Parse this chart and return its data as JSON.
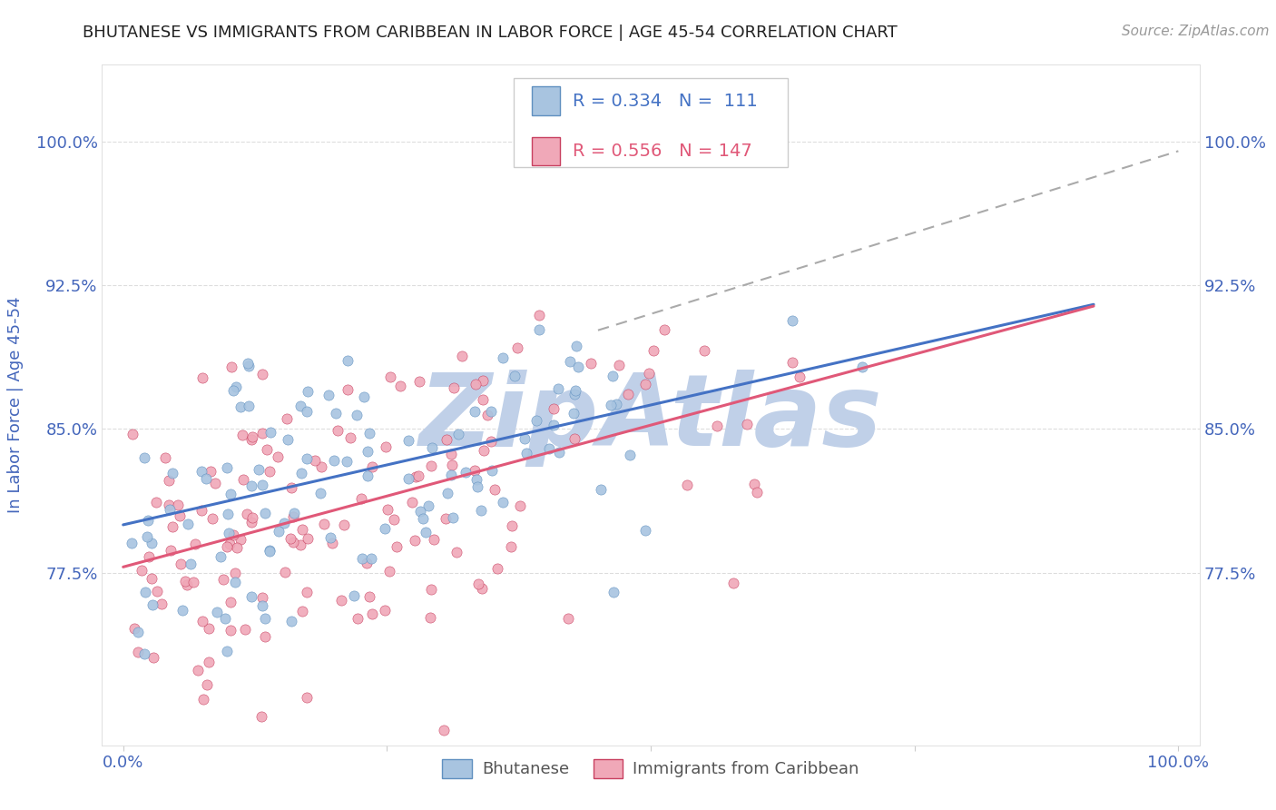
{
  "title": "BHUTANESE VS IMMIGRANTS FROM CARIBBEAN IN LABOR FORCE | AGE 45-54 CORRELATION CHART",
  "source": "Source: ZipAtlas.com",
  "ylabel": "In Labor Force | Age 45-54",
  "xlim": [
    -0.02,
    1.02
  ],
  "ylim": [
    0.685,
    1.04
  ],
  "yticks": [
    0.775,
    0.85,
    0.925,
    1.0
  ],
  "ytick_labels": [
    "77.5%",
    "85.0%",
    "92.5%",
    "100.0%"
  ],
  "xticks": [
    0.0,
    0.25,
    0.5,
    0.75,
    1.0
  ],
  "xtick_labels": [
    "0.0%",
    "",
    "",
    "",
    "100.0%"
  ],
  "blue_R": 0.334,
  "blue_N": 111,
  "pink_R": 0.556,
  "pink_N": 147,
  "blue_color": "#a8c4e0",
  "pink_color": "#f0a8b8",
  "blue_line_color": "#4472c4",
  "pink_line_color": "#e05878",
  "blue_scatter_edge": "#6090c0",
  "pink_scatter_edge": "#c84060",
  "watermark": "ZipAtlas",
  "watermark_color": "#c0d0e8",
  "legend_label_blue": "Bhutanese",
  "legend_label_pink": "Immigrants from Caribbean",
  "blue_intercept": 0.8,
  "blue_slope": 0.125,
  "pink_intercept": 0.778,
  "pink_slope": 0.148,
  "dashed_intercept": 0.825,
  "dashed_slope": 0.17,
  "title_color": "#222222",
  "axis_label_color": "#4466bb",
  "tick_color": "#4466bb",
  "grid_color": "#dddddd",
  "background_color": "#ffffff",
  "source_color": "#999999"
}
